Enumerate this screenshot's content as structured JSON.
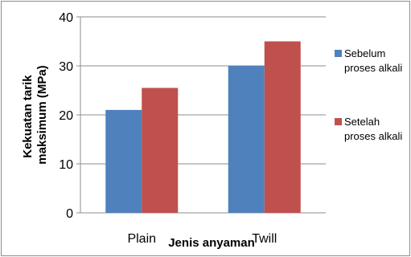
{
  "chart_data": {
    "type": "bar",
    "categories": [
      "Plain",
      "Twill"
    ],
    "series": [
      {
        "name": "Sebelum proses alkali",
        "name_lines": [
          "Sebelum",
          "proses alkali"
        ],
        "values": [
          21,
          30
        ],
        "color": "#4f81bd"
      },
      {
        "name": "Setelah proses alkali",
        "name_lines": [
          "Setelah",
          "proses alkali"
        ],
        "values": [
          25.5,
          35
        ],
        "color": "#c0504d"
      }
    ],
    "xlabel": "Jenis anyaman",
    "ylabel_lines": [
      "Kekuatan tarik",
      "maksimum (MPa)"
    ],
    "ylim": [
      0,
      40
    ],
    "yticks": [
      "0",
      "10",
      "20",
      "30",
      "40"
    ],
    "grid": true,
    "legend_position": "right"
  }
}
